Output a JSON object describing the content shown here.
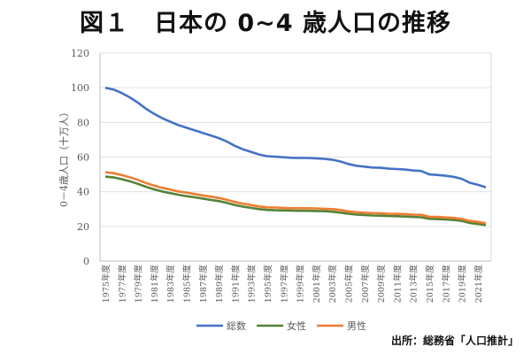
{
  "title": "図１　日本の 0~4 歳人口の推移",
  "source": "出所：総務省「人口推計」",
  "chart_data": {
    "type": "line",
    "title": "図１　日本の 0~4 歳人口の推移",
    "xlabel": "",
    "ylabel": "0－4歳人口（十万人）",
    "ylim": [
      0,
      120
    ],
    "yticks": [
      0,
      20,
      40,
      60,
      80,
      100,
      120
    ],
    "grid": true,
    "legend_position": "bottom",
    "x": [
      1975,
      1976,
      1977,
      1978,
      1979,
      1980,
      1981,
      1982,
      1983,
      1984,
      1985,
      1986,
      1987,
      1988,
      1989,
      1990,
      1991,
      1992,
      1993,
      1994,
      1995,
      1996,
      1997,
      1998,
      1999,
      2000,
      2001,
      2002,
      2003,
      2004,
      2005,
      2006,
      2007,
      2008,
      2009,
      2010,
      2011,
      2012,
      2013,
      2014,
      2015,
      2016,
      2017,
      2018,
      2019,
      2020,
      2021,
      2022
    ],
    "xtick_labels": [
      "1975年度",
      "1977年度",
      "1979年度",
      "1981年度",
      "1983年度",
      "1985年度",
      "1987年度",
      "1989年度",
      "1991年度",
      "1993年度",
      "1995年度",
      "1997年度",
      "1999年度",
      "2001年度",
      "2003年度",
      "2005年度",
      "2007年度",
      "2009年度",
      "2011年度",
      "2013年度",
      "2015年度",
      "2017年度",
      "2019年度",
      "2021年度"
    ],
    "series": [
      {
        "name": "総数",
        "color": "#4472C4",
        "values": [
          100,
          99,
          97,
          94.5,
          91.5,
          88,
          85,
          82.5,
          80.5,
          78.5,
          77,
          75.5,
          74,
          72.5,
          71,
          69,
          66.5,
          64.5,
          63,
          61.5,
          60.5,
          60.2,
          59.9,
          59.6,
          59.5,
          59.5,
          59.3,
          59.0,
          58.5,
          57.5,
          56,
          55,
          54.5,
          54,
          53.8,
          53.3,
          53.1,
          52.8,
          52.3,
          52,
          50,
          49.7,
          49.2,
          48.6,
          47.5,
          45.2,
          44,
          42.6
        ]
      },
      {
        "name": "女性",
        "color": "#548235",
        "values": [
          48.7,
          48.3,
          47.3,
          46.1,
          44.6,
          42.9,
          41.4,
          40.2,
          39.2,
          38.3,
          37.5,
          36.8,
          36.1,
          35.3,
          34.6,
          33.6,
          32.4,
          31.4,
          30.7,
          30.0,
          29.5,
          29.3,
          29.2,
          29.1,
          29.0,
          29.0,
          28.9,
          28.8,
          28.5,
          28.0,
          27.3,
          26.8,
          26.6,
          26.3,
          26.2,
          26.0,
          25.9,
          25.7,
          25.5,
          25.3,
          24.4,
          24.2,
          24.0,
          23.7,
          23.2,
          22.0,
          21.4,
          20.8
        ]
      },
      {
        "name": "男性",
        "color": "#ED7D31",
        "values": [
          51.3,
          50.7,
          49.7,
          48.4,
          46.9,
          45.1,
          43.6,
          42.3,
          41.3,
          40.2,
          39.5,
          38.7,
          37.9,
          37.2,
          36.4,
          35.4,
          34.1,
          33.1,
          32.3,
          31.5,
          31.0,
          30.9,
          30.7,
          30.5,
          30.5,
          30.5,
          30.4,
          30.2,
          30.0,
          29.5,
          28.7,
          28.2,
          27.9,
          27.7,
          27.6,
          27.3,
          27.2,
          27.1,
          26.8,
          26.7,
          25.6,
          25.5,
          25.2,
          24.9,
          24.3,
          23.2,
          22.6,
          21.8
        ]
      }
    ]
  }
}
